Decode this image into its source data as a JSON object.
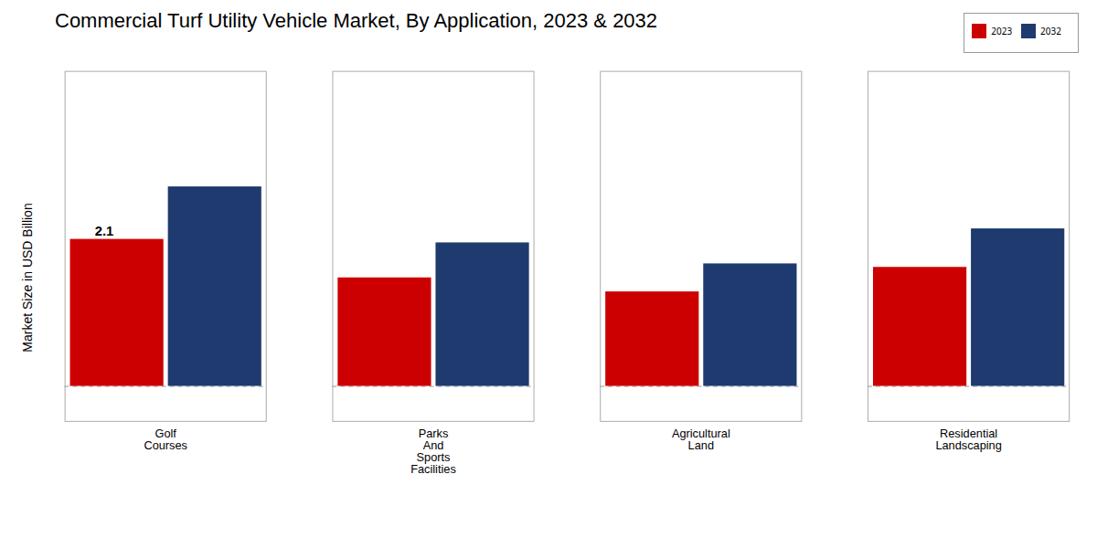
{
  "chart_data": {
    "type": "bar",
    "title": "Commercial Turf Utility Vehicle Market, By Application, 2023 & 2032",
    "ylabel": "Market Size in USD Billion",
    "categories": [
      "Golf\nCourses",
      "Parks\nAnd\nSports\nFacilities",
      "Agricultural\nLand",
      "Residential\nLandscaping"
    ],
    "series": [
      {
        "name": "2023",
        "color": "#cc0000",
        "values": [
          2.1,
          1.55,
          1.35,
          1.7
        ]
      },
      {
        "name": "2032",
        "color": "#1e3a6e",
        "values": [
          2.85,
          2.05,
          1.75,
          2.25
        ]
      }
    ],
    "ylim": [
      -0.5,
      4.5
    ],
    "yticks": [],
    "tick_labels": "x",
    "grid": false,
    "legend": "upper right",
    "annotations": [
      {
        "text": "2.1",
        "category": "Golf\nCourses",
        "series": "2023"
      }
    ]
  }
}
